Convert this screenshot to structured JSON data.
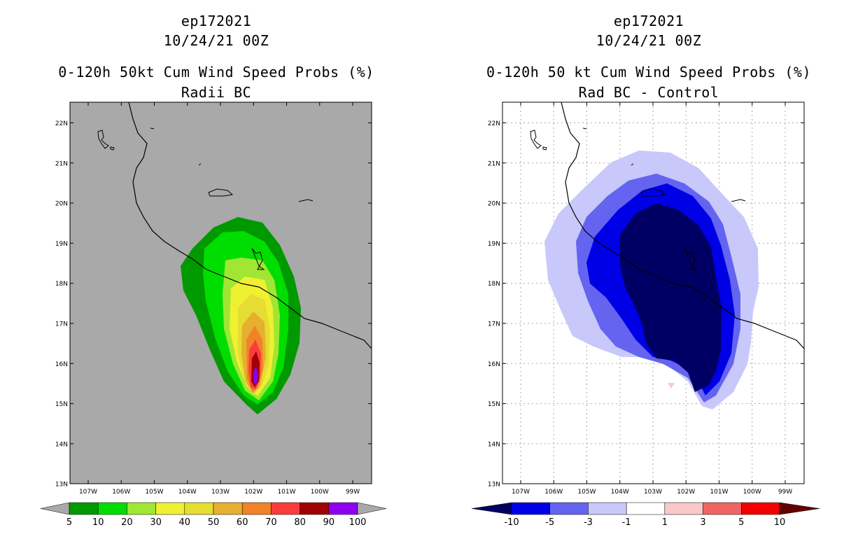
{
  "left": {
    "storm_id": "ep172021",
    "datetime": "10/24/21 00Z",
    "title": "0-120h 50kt Cum Wind Speed Probs (%)",
    "subtitle": "Radii BC",
    "background_color": "#a9a9a9",
    "colorbar": {
      "labels": [
        "5",
        "10",
        "20",
        "30",
        "40",
        "50",
        "60",
        "70",
        "80",
        "90",
        "100"
      ],
      "colors": [
        "#009900",
        "#00dd00",
        "#a0e632",
        "#f0f032",
        "#e6dc32",
        "#e6af2d",
        "#f08228",
        "#fa3c3c",
        "#a00000",
        "#8c00f0"
      ],
      "under_color": "#a9a9a9",
      "over_color": "#a9a9a9"
    }
  },
  "right": {
    "storm_id": "ep172021",
    "datetime": "10/24/21 00Z",
    "title": "0-120h 50 kt Cum Wind Speed Probs (%)",
    "subtitle": "Rad BC - Control",
    "background_color": "#ffffff",
    "colorbar": {
      "labels": [
        "-10",
        "-5",
        "-3",
        "-1",
        "1",
        "3",
        "5",
        "10"
      ],
      "colors": [
        "#0000e6",
        "#6464f0",
        "#c8c8fa",
        "#ffffff",
        "#fac8c8",
        "#f06464",
        "#f00000"
      ],
      "under_color": "#000064",
      "over_color": "#640000"
    }
  },
  "axes": {
    "lat_labels": [
      "22N",
      "21N",
      "20N",
      "19N",
      "18N",
      "17N",
      "16N",
      "15N",
      "14N",
      "13N"
    ],
    "lon_labels": [
      "107W",
      "106W",
      "105W",
      "104W",
      "103W",
      "102W",
      "101W",
      "100W",
      "99W"
    ]
  }
}
